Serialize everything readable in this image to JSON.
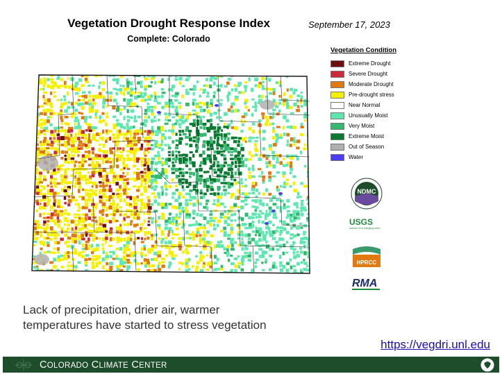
{
  "slide": {
    "title": "Vegetation Drought Response Index",
    "subtitle": "Complete: Colorado",
    "date": "September 17, 2023",
    "caption_line1": "Lack of precipitation, drier air, warmer",
    "caption_line2": "temperatures have started to stress vegetation",
    "link": "https://vegdri.unl.edu"
  },
  "legend": {
    "title": "Vegetation Condition",
    "items": [
      {
        "label": "Extreme Drought",
        "color": "#6b1010"
      },
      {
        "label": "Severe Drought",
        "color": "#cc2a3a"
      },
      {
        "label": "Moderate Drought",
        "color": "#e07a10"
      },
      {
        "label": "Pre-drought stress",
        "color": "#f5f000"
      },
      {
        "label": "Near Normal",
        "color": "#ffffff"
      },
      {
        "label": "Unusually Moist",
        "color": "#5ee8b0"
      },
      {
        "label": "Very Moist",
        "color": "#35b870"
      },
      {
        "label": "Extreme Moist",
        "color": "#0a7a30"
      },
      {
        "label": "Out of Season",
        "color": "#b0b0b0"
      },
      {
        "label": "Water",
        "color": "#4a3cf0"
      }
    ]
  },
  "logos": {
    "ndmc": "NDMC",
    "usgs": "USGS",
    "usgs_tagline": "science for a changing world",
    "hpcc": "HPRCC",
    "rma": "RMA"
  },
  "footer": {
    "first_c": "C",
    "first_rest": "OLORADO",
    "second_c": "C",
    "second_rest": "LIMATE",
    "third_c": "C",
    "third_rest": "ENTER"
  },
  "colors": {
    "footer_bg": "#1e4d2b",
    "link": "#1a0dab"
  }
}
